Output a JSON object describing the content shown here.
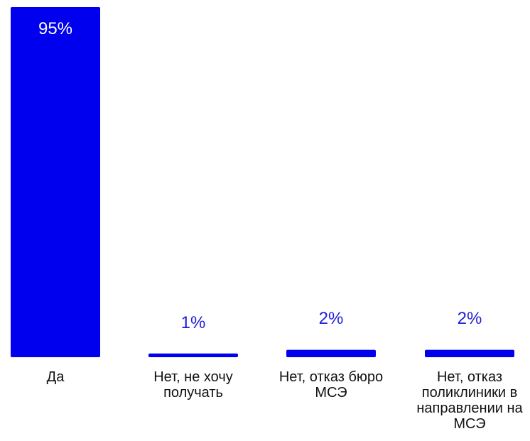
{
  "chart_data": {
    "type": "bar",
    "title": "",
    "xlabel": "",
    "ylabel": "",
    "ylim": [
      0,
      95
    ],
    "grid": false,
    "legend": "none",
    "categories": [
      "Да",
      "Нет, не хочу получать",
      "Нет, отказ бюро МСЭ",
      "Нет, отказ поликлиники в направлении на МСЭ"
    ],
    "category_lines": [
      [
        "Да"
      ],
      [
        "Нет, не хочу",
        "получать"
      ],
      [
        "Нет, отказ бюро",
        "МСЭ"
      ],
      [
        "Нет, отказ",
        "поликлиники в",
        "направлении на",
        "МСЭ"
      ]
    ],
    "values": [
      95,
      1,
      2,
      2
    ],
    "data_labels": [
      "95%",
      "1%",
      "2%",
      "2%"
    ],
    "colors": {
      "bar": "#0000ee",
      "label_inside": "#ffffff",
      "label_outside": "#1f1fd6",
      "category_text": "#111111"
    }
  }
}
